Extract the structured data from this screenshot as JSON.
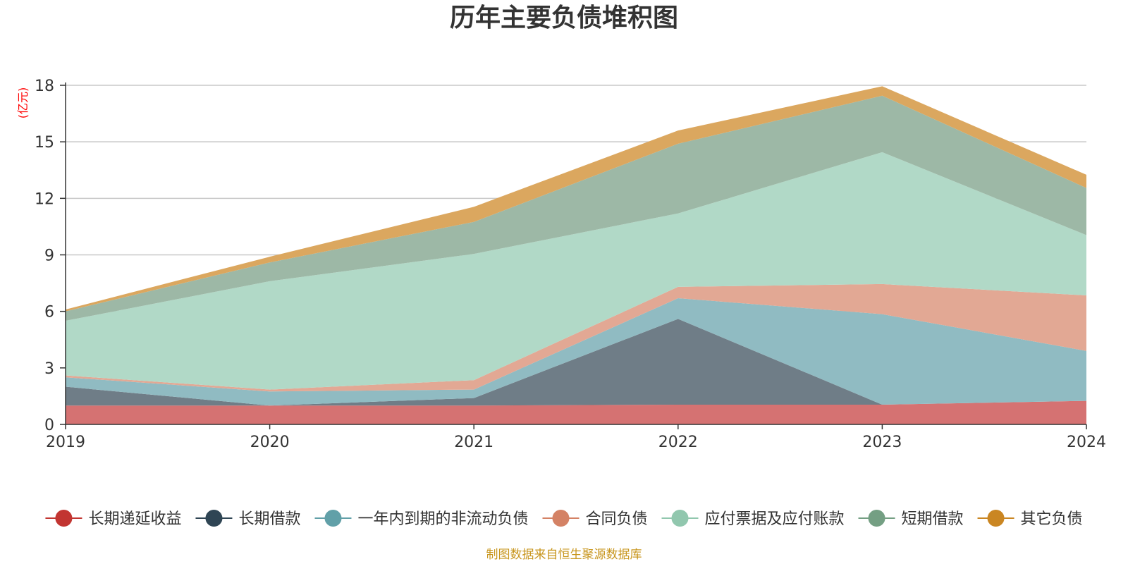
{
  "chart_data": {
    "type": "area",
    "stacked": true,
    "title": "历年主要负债堆积图",
    "ylabel": "(亿元)",
    "xlabel": "",
    "categories": [
      "2019",
      "2020",
      "2021",
      "2022",
      "2023",
      "2024"
    ],
    "y_ticks": [
      "0",
      "3",
      "6",
      "9",
      "12",
      "15",
      "18"
    ],
    "ylim": [
      0,
      18
    ],
    "grid": true,
    "legend_position": "bottom",
    "series": [
      {
        "name": "长期递延收益",
        "color": "#c23531",
        "fill": "#d57272",
        "values": [
          1.0,
          1.0,
          1.0,
          1.05,
          1.05,
          1.25
        ]
      },
      {
        "name": "长期借款",
        "color": "#2f4554",
        "fill": "#6f7d87",
        "values": [
          1.0,
          0.0,
          0.4,
          4.55,
          0.0,
          0.0
        ]
      },
      {
        "name": "一年内到期的非流动负债",
        "color": "#61a0a8",
        "fill": "#90bbc2",
        "values": [
          0.5,
          0.75,
          0.45,
          1.1,
          4.8,
          2.65
        ]
      },
      {
        "name": "合同负债",
        "color": "#d48265",
        "fill": "#e2a894",
        "values": [
          0.1,
          0.1,
          0.5,
          0.6,
          1.6,
          2.95
        ]
      },
      {
        "name": "应付票据及应付账款",
        "color": "#91c7ae",
        "fill": "#b1d9c7",
        "values": [
          2.9,
          5.75,
          6.7,
          3.9,
          7.0,
          3.2
        ]
      },
      {
        "name": "短期借款",
        "color": "#749f83",
        "fill": "#9db8a6",
        "values": [
          0.5,
          1.0,
          1.7,
          3.7,
          3.0,
          2.5
        ]
      },
      {
        "name": "其它负债",
        "color": "#ca8622",
        "fill": "#dba75f",
        "values": [
          0.1,
          0.3,
          0.8,
          0.7,
          0.5,
          0.7
        ]
      }
    ],
    "source": "制图数据来自恒生聚源数据库"
  }
}
